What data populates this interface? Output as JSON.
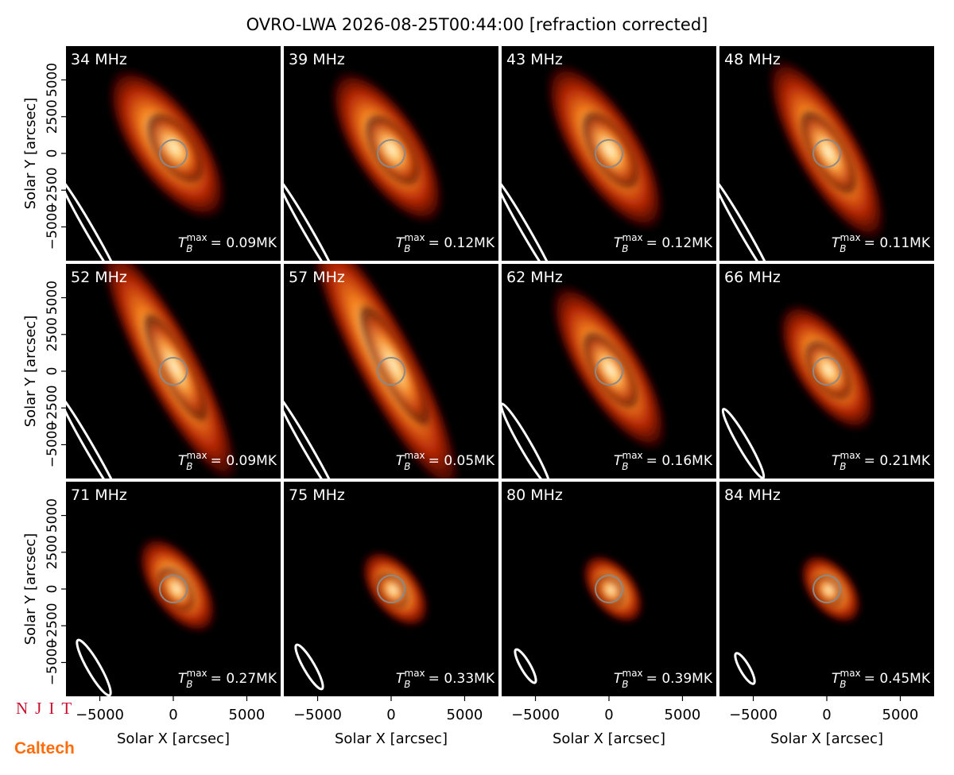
{
  "chart_data": {
    "type": "image",
    "title": "OVRO-LWA 2026-08-25T00:44:00 [refraction corrected]",
    "xlabel": "Solar X [arcsec]",
    "ylabel": "Solar Y [arcsec]",
    "xlim": [
      -7300,
      7300
    ],
    "ylim": [
      -7300,
      7300
    ],
    "xticks": [
      {
        "value": -5000,
        "label": "−5000"
      },
      0,
      5000
    ],
    "yticks": [
      {
        "value": -5000,
        "label": "−5000"
      },
      {
        "value": -2500,
        "label": "−2500"
      },
      0,
      2500,
      5000
    ],
    "tb_symbol": {
      "base": "T",
      "sub": "B",
      "sup": "max"
    },
    "panels": [
      {
        "label": "34 MHz",
        "annotation": "= 0.09MK"
      },
      {
        "label": "39 MHz",
        "annotation": "= 0.12MK"
      },
      {
        "label": "43 MHz",
        "annotation": "= 0.12MK"
      },
      {
        "label": "48 MHz",
        "annotation": "= 0.11MK"
      },
      {
        "label": "52 MHz",
        "annotation": "= 0.09MK"
      },
      {
        "label": "57 MHz",
        "annotation": "= 0.05MK"
      },
      {
        "label": "62 MHz",
        "annotation": "= 0.16MK"
      },
      {
        "label": "66 MHz",
        "annotation": "= 0.21MK"
      },
      {
        "label": "71 MHz",
        "annotation": "= 0.27MK"
      },
      {
        "label": "75 MHz",
        "annotation": "= 0.33MK"
      },
      {
        "label": "80 MHz",
        "annotation": "= 0.39MK"
      },
      {
        "label": "84 MHz",
        "annotation": "= 0.45MK"
      }
    ],
    "logos": [
      "NJIT",
      "Caltech"
    ]
  }
}
